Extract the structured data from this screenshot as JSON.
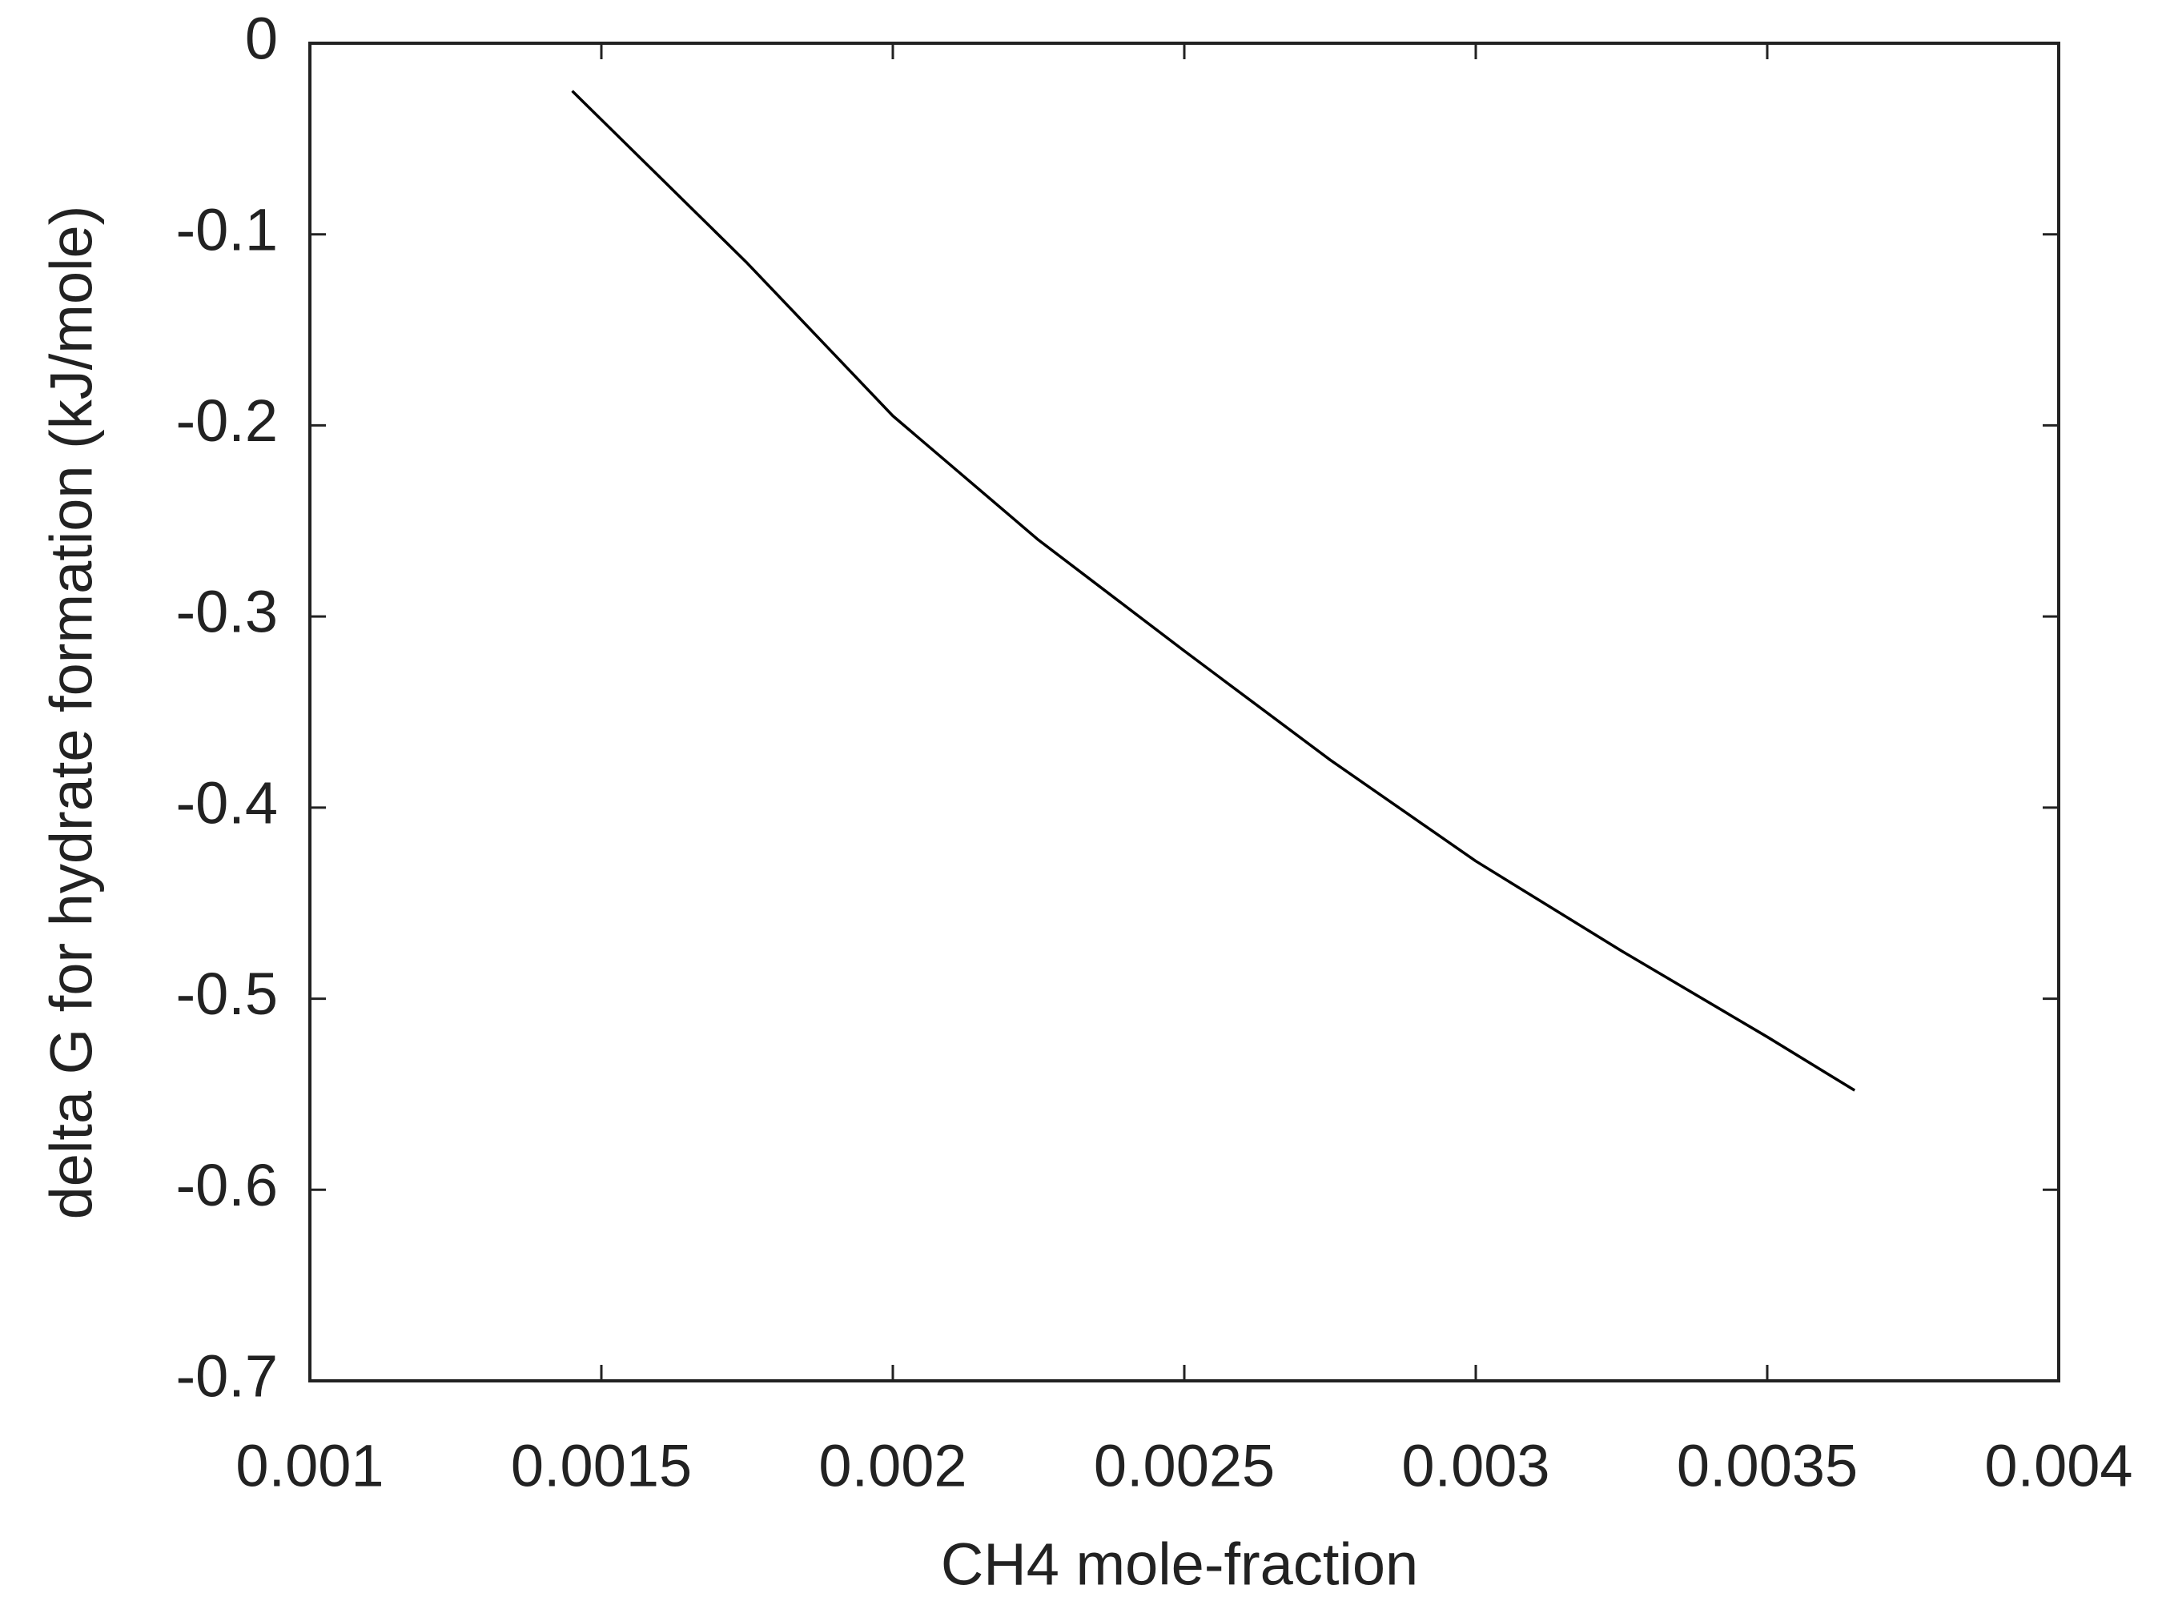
{
  "chart_data": {
    "type": "line",
    "xlabel": "CH4 mole-fraction",
    "ylabel": "delta G for hydrate formation (kJ/mole)",
    "x": [
      0.00145,
      0.00175,
      0.002,
      0.00225,
      0.0025,
      0.00275,
      0.003,
      0.00325,
      0.0035,
      0.00365
    ],
    "series": [
      {
        "color": "#000000",
        "values": [
          -0.025,
          -0.115,
          -0.195,
          -0.26,
          -0.318,
          -0.375,
          -0.428,
          -0.475,
          -0.52,
          -0.548
        ]
      }
    ],
    "xlim": [
      0.001,
      0.004
    ],
    "xticks": [
      0.001,
      0.0015,
      0.002,
      0.0025,
      0.003,
      0.0035,
      0.004
    ],
    "ylim": [
      -0.7,
      0
    ],
    "yticks": [
      0,
      -0.1,
      -0.2,
      -0.3,
      -0.4,
      -0.5,
      -0.6,
      -0.7
    ],
    "grid": false
  }
}
